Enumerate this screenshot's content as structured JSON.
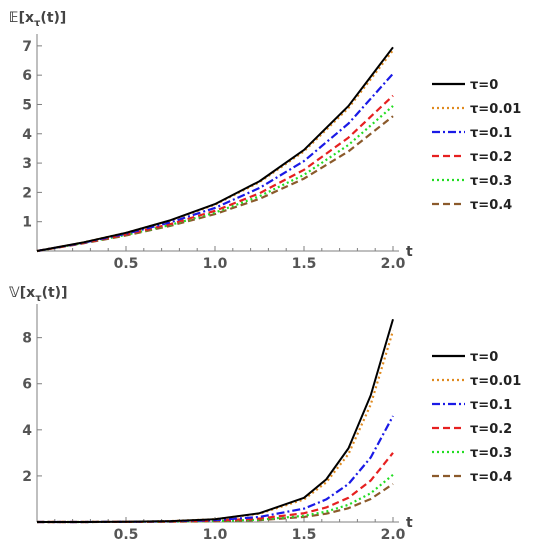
{
  "chart_data": [
    {
      "type": "line",
      "ylabel": "𝔼[x",
      "ylabel_sub": "τ",
      "ylabel_tail": "(t)]",
      "xlabel": "t",
      "xlim": [
        0,
        2.0
      ],
      "ylim": [
        0,
        7.2
      ],
      "xticks": [
        "0.5",
        "1.0",
        "1.5",
        "2.0"
      ],
      "xtick_values": [
        0.5,
        1.0,
        1.5,
        2.0
      ],
      "yticks": [
        "1",
        "2",
        "3",
        "4",
        "5",
        "6",
        "7"
      ],
      "ytick_values": [
        1,
        2,
        3,
        4,
        5,
        6,
        7
      ],
      "legend_position": "right",
      "x": [
        0,
        0.25,
        0.5,
        0.75,
        1.0,
        1.25,
        1.5,
        1.75,
        2.0
      ],
      "series": [
        {
          "name": "τ=0",
          "color": "#000000",
          "dash": "solid",
          "values": [
            0,
            0.28,
            0.62,
            1.05,
            1.6,
            2.38,
            3.45,
            4.95,
            6.95
          ]
        },
        {
          "name": "τ=0.01",
          "color": "#e08a1e",
          "dash": "dot",
          "values": [
            0,
            0.28,
            0.62,
            1.04,
            1.58,
            2.35,
            3.4,
            4.88,
            6.85
          ]
        },
        {
          "name": "τ=0.1",
          "color": "#1a1ae6",
          "dash": "dashdot",
          "values": [
            0,
            0.27,
            0.59,
            0.98,
            1.47,
            2.15,
            3.07,
            4.35,
            6.05
          ]
        },
        {
          "name": "τ=0.2",
          "color": "#e62020",
          "dash": "dash",
          "values": [
            0,
            0.26,
            0.56,
            0.92,
            1.37,
            1.97,
            2.77,
            3.87,
            5.3
          ]
        },
        {
          "name": "τ=0.3",
          "color": "#22dd22",
          "dash": "dot",
          "values": [
            0,
            0.26,
            0.55,
            0.89,
            1.31,
            1.87,
            2.6,
            3.62,
            4.95
          ]
        },
        {
          "name": "τ=0.4",
          "color": "#8b5a2b",
          "dash": "dash",
          "values": [
            0,
            0.25,
            0.53,
            0.86,
            1.26,
            1.78,
            2.47,
            3.4,
            4.6
          ]
        }
      ]
    },
    {
      "type": "line",
      "ylabel": "𝕍[x",
      "ylabel_sub": "τ",
      "ylabel_tail": "(t)]",
      "xlabel": "t",
      "xlim": [
        0,
        2.0
      ],
      "ylim": [
        0,
        9.2
      ],
      "xticks": [
        "0.5",
        "1.0",
        "1.5",
        "2.0"
      ],
      "xtick_values": [
        0.5,
        1.0,
        1.5,
        2.0
      ],
      "yticks": [
        "2",
        "4",
        "6",
        "8"
      ],
      "ytick_values": [
        2,
        4,
        6,
        8
      ],
      "legend_position": "right",
      "x": [
        0,
        0.25,
        0.5,
        0.75,
        1.0,
        1.25,
        1.5,
        1.625,
        1.75,
        1.875,
        2.0
      ],
      "series": [
        {
          "name": "τ=0",
          "color": "#000000",
          "dash": "solid",
          "values": [
            0,
            0.002,
            0.01,
            0.04,
            0.12,
            0.38,
            1.05,
            1.85,
            3.2,
            5.5,
            8.8
          ]
        },
        {
          "name": "τ=0.01",
          "color": "#e08a1e",
          "dash": "dot",
          "values": [
            0,
            0.002,
            0.01,
            0.04,
            0.12,
            0.36,
            0.98,
            1.72,
            2.95,
            5.1,
            8.3
          ]
        },
        {
          "name": "τ=0.1",
          "color": "#1a1ae6",
          "dash": "dashdot",
          "values": [
            0,
            0.001,
            0.008,
            0.03,
            0.08,
            0.22,
            0.58,
            0.98,
            1.65,
            2.8,
            4.6
          ]
        },
        {
          "name": "τ=0.2",
          "color": "#e62020",
          "dash": "dash",
          "values": [
            0,
            0.001,
            0.005,
            0.02,
            0.06,
            0.15,
            0.38,
            0.63,
            1.05,
            1.8,
            3.0
          ]
        },
        {
          "name": "τ=0.3",
          "color": "#22dd22",
          "dash": "dot",
          "values": [
            0,
            0.001,
            0.004,
            0.015,
            0.04,
            0.1,
            0.27,
            0.45,
            0.75,
            1.25,
            2.05
          ]
        },
        {
          "name": "τ=0.4",
          "color": "#8b5a2b",
          "dash": "dash",
          "values": [
            0,
            0.001,
            0.003,
            0.012,
            0.03,
            0.08,
            0.22,
            0.36,
            0.6,
            1.0,
            1.65
          ]
        }
      ]
    }
  ]
}
